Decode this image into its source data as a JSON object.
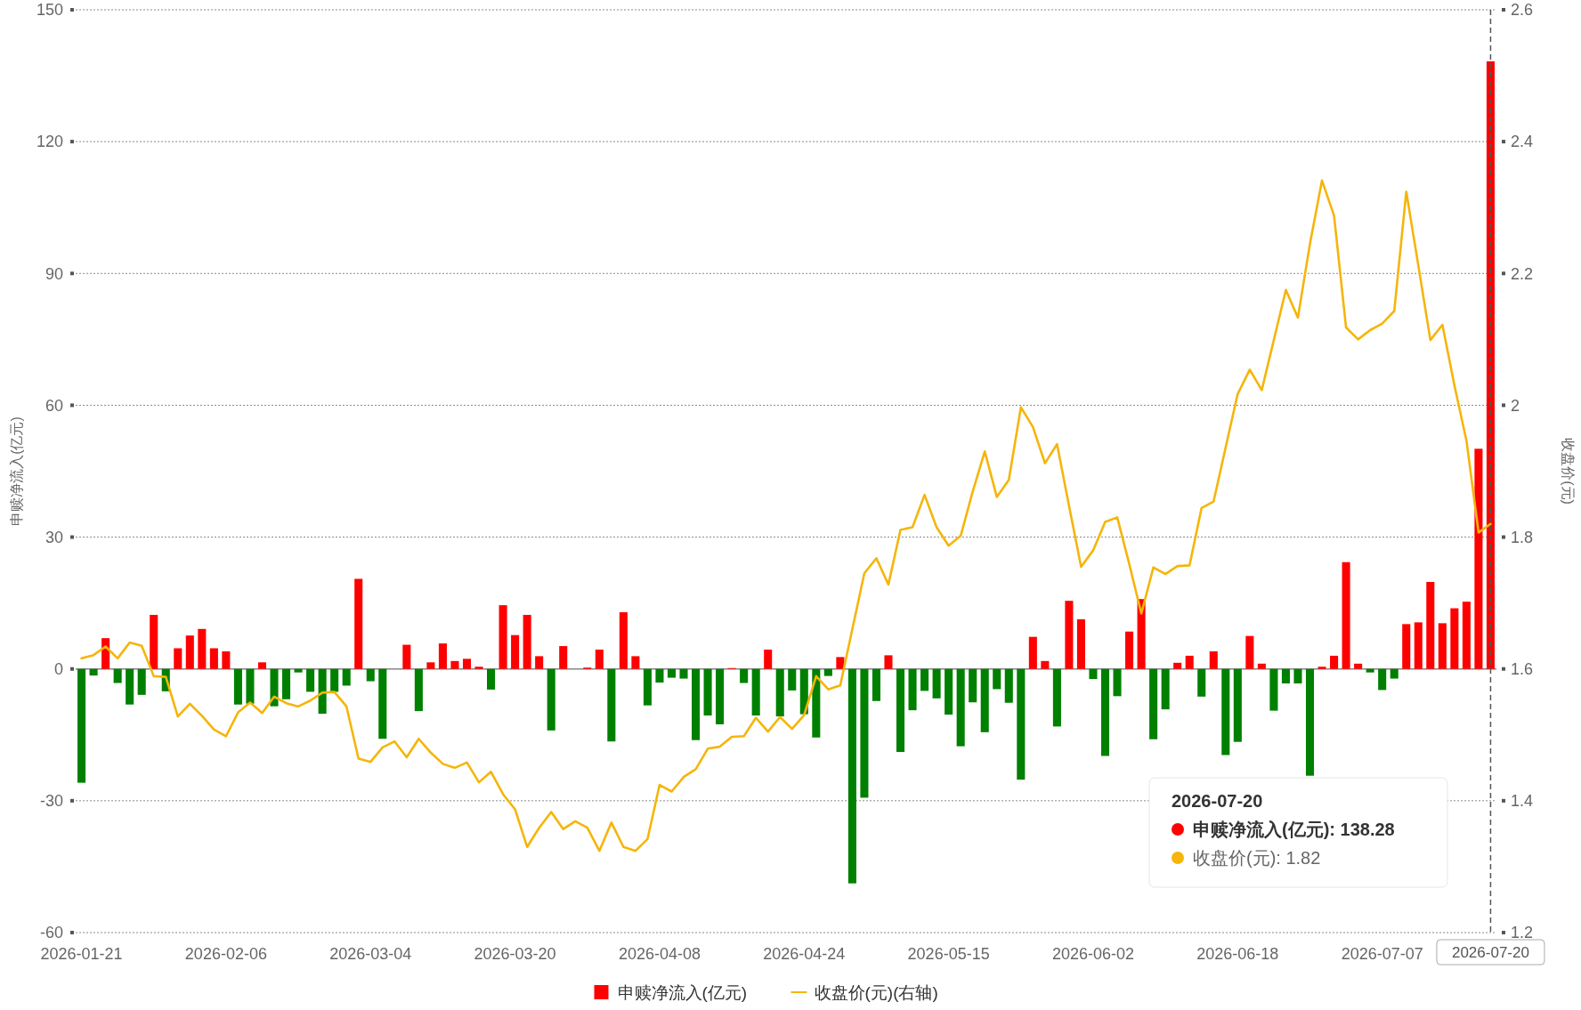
{
  "chart_data": {
    "type": "bar",
    "ylabel": "申赎净流入(亿元)",
    "y2label": "收盘价(元)",
    "categories": [
      "2026-01-21",
      null,
      null,
      null,
      null,
      null,
      null,
      null,
      null,
      null,
      null,
      null,
      "2026-02-06",
      null,
      null,
      null,
      null,
      null,
      null,
      null,
      null,
      null,
      null,
      null,
      "2026-03-04",
      null,
      null,
      null,
      null,
      null,
      null,
      null,
      null,
      null,
      null,
      null,
      "2026-03-20",
      null,
      null,
      null,
      null,
      null,
      null,
      null,
      null,
      null,
      null,
      null,
      "2026-04-08",
      null,
      null,
      null,
      null,
      null,
      null,
      null,
      null,
      null,
      null,
      null,
      "2026-04-24",
      null,
      null,
      null,
      null,
      null,
      null,
      null,
      null,
      null,
      null,
      null,
      "2026-05-15",
      null,
      null,
      null,
      null,
      null,
      null,
      null,
      null,
      null,
      null,
      null,
      "2026-06-02",
      null,
      null,
      null,
      null,
      null,
      null,
      null,
      null,
      null,
      null,
      null,
      "2026-06-18",
      null,
      null,
      null,
      null,
      null,
      null,
      null,
      null,
      null,
      null,
      null,
      "2026-07-07",
      null,
      null,
      null,
      null,
      null,
      null,
      null,
      null,
      "2026-07-20"
    ],
    "series": [
      {
        "name": "申赎净流入(亿元)",
        "color": "#ff0000",
        "values": [
          -25.9,
          -1.5,
          7.0,
          -3.2,
          -8.1,
          -5.9,
          12.3,
          -5.1,
          4.7,
          7.6,
          9.1,
          4.7,
          4.0,
          -8.1,
          -7.9,
          1.5,
          -8.5,
          -6.9,
          -0.8,
          -5.2,
          -10.2,
          -5.2,
          -3.8,
          20.5,
          -2.8,
          -15.9,
          0,
          5.5,
          -9.6,
          1.5,
          5.8,
          1.8,
          2.3,
          0.5,
          -4.7,
          14.5,
          7.7,
          12.3,
          2.9,
          -14.0,
          5.2,
          0,
          0.3,
          4.4,
          -16.5,
          12.9,
          2.9,
          -8.3,
          -3.1,
          -2.0,
          -2.2,
          -16.2,
          -10.6,
          -12.6,
          0.2,
          -3.2,
          -10.6,
          4.4,
          -10.8,
          -4.9,
          -10.3,
          -15.6,
          -1.6,
          2.7,
          -48.8,
          -29.3,
          -7.3,
          3.1,
          -18.9,
          -9.4,
          -5.0,
          -6.7,
          -10.4,
          -17.6,
          -7.6,
          -14.4,
          -4.6,
          -7.7,
          -25.2,
          7.3,
          1.8,
          -13.1,
          15.5,
          11.3,
          -2.3,
          -19.8,
          -6.2,
          8.5,
          15.9,
          -16.0,
          -9.2,
          1.4,
          3.0,
          -6.3,
          4.0,
          -19.6,
          -16.6,
          7.5,
          1.2,
          -9.5,
          -3.3,
          -3.3,
          -24.3,
          0.5,
          3.0,
          24.3,
          1.2,
          -0.8,
          -4.8,
          -2.2,
          10.2,
          10.6,
          19.8,
          10.4,
          13.8,
          15.3,
          50.1,
          138.28
        ],
        "colors": [
          "#008000",
          "#008000",
          "#ff0000",
          "#008000",
          "#008000",
          "#008000",
          "#ff0000",
          "#008000",
          "#ff0000",
          "#ff0000",
          "#ff0000",
          "#ff0000",
          "#ff0000",
          "#008000",
          "#008000",
          "#ff0000",
          "#008000",
          "#008000",
          "#008000",
          "#008000",
          "#008000",
          "#008000",
          "#008000",
          "#ff0000",
          "#008000",
          "#008000",
          "#ff0000",
          "#ff0000",
          "#008000",
          "#ff0000",
          "#ff0000",
          "#ff0000",
          "#ff0000",
          "#ff0000",
          "#008000",
          "#ff0000",
          "#ff0000",
          "#ff0000",
          "#ff0000",
          "#008000",
          "#ff0000",
          "#ff0000",
          "#ff0000",
          "#ff0000",
          "#008000",
          "#ff0000",
          "#ff0000",
          "#008000",
          "#008000",
          "#008000",
          "#008000",
          "#008000",
          "#008000",
          "#008000",
          "#ff0000",
          "#008000",
          "#008000",
          "#ff0000",
          "#008000",
          "#008000",
          "#008000",
          "#008000",
          "#008000",
          "#ff0000",
          "#008000",
          "#008000",
          "#008000",
          "#ff0000",
          "#008000",
          "#008000",
          "#008000",
          "#008000",
          "#008000",
          "#008000",
          "#008000",
          "#008000",
          "#008000",
          "#008000",
          "#008000",
          "#ff0000",
          "#ff0000",
          "#008000",
          "#ff0000",
          "#ff0000",
          "#008000",
          "#008000",
          "#008000",
          "#ff0000",
          "#ff0000",
          "#008000",
          "#008000",
          "#ff0000",
          "#ff0000",
          "#008000",
          "#ff0000",
          "#008000",
          "#008000",
          "#ff0000",
          "#ff0000",
          "#008000",
          "#008000",
          "#008000",
          "#008000",
          "#ff0000",
          "#ff0000",
          "#ff0000",
          "#ff0000",
          "#008000",
          "#008000",
          "#008000",
          "#ff0000",
          "#ff0000",
          "#ff0000",
          "#ff0000",
          "#ff0000",
          "#ff0000",
          "#ff0000",
          "#ff0000"
        ]
      },
      {
        "name": "收盘价(元)(右轴)",
        "type": "line",
        "axis": "y2",
        "color": "#f5b50a",
        "values": [
          1.616,
          1.621,
          1.634,
          1.616,
          1.64,
          1.635,
          1.589,
          1.588,
          1.528,
          1.547,
          1.529,
          1.508,
          1.498,
          1.534,
          1.549,
          1.533,
          1.558,
          1.548,
          1.543,
          1.552,
          1.564,
          1.565,
          1.543,
          1.464,
          1.459,
          1.481,
          1.49,
          1.466,
          1.494,
          1.473,
          1.456,
          1.45,
          1.458,
          1.428,
          1.444,
          1.41,
          1.387,
          1.33,
          1.359,
          1.383,
          1.357,
          1.369,
          1.359,
          1.324,
          1.367,
          1.33,
          1.324,
          1.342,
          1.424,
          1.414,
          1.436,
          1.448,
          1.479,
          1.482,
          1.497,
          1.498,
          1.526,
          1.505,
          1.527,
          1.509,
          1.53,
          1.589,
          1.569,
          1.575,
          1.66,
          1.745,
          1.768,
          1.728,
          1.811,
          1.815,
          1.864,
          1.815,
          1.787,
          1.802,
          1.869,
          1.93,
          1.861,
          1.887,
          1.997,
          1.967,
          1.912,
          1.941,
          1.847,
          1.755,
          1.78,
          1.823,
          1.83,
          1.759,
          1.684,
          1.754,
          1.744,
          1.756,
          1.757,
          1.844,
          1.854,
          1.936,
          2.017,
          2.054,
          2.023,
          2.099,
          2.175,
          2.133,
          2.245,
          2.341,
          2.288,
          2.118,
          2.1,
          2.114,
          2.124,
          2.143,
          2.324,
          2.212,
          2.099,
          2.122,
          2.03,
          1.946,
          1.807,
          1.82
        ]
      }
    ],
    "ylim": [
      -60,
      150
    ],
    "yticks": [
      -60,
      -30,
      0,
      30,
      60,
      90,
      120,
      150
    ],
    "y2lim": [
      1.2,
      2.6
    ],
    "y2ticks": [
      1.2,
      1.4,
      1.6,
      1.8,
      2,
      2.2,
      2.4,
      2.6
    ],
    "grid": "y",
    "legend": "bottom",
    "marker": "none",
    "line_style": "solid",
    "ref_lines": [
      {
        "axis": "x",
        "value": "2026-07-20",
        "color": "#555555",
        "line_style": "dashed"
      }
    ],
    "annotations": [
      "2026-07-20",
      "申赎净流入(亿元): 138.28",
      "收盘价(元): 1.82"
    ]
  }
}
